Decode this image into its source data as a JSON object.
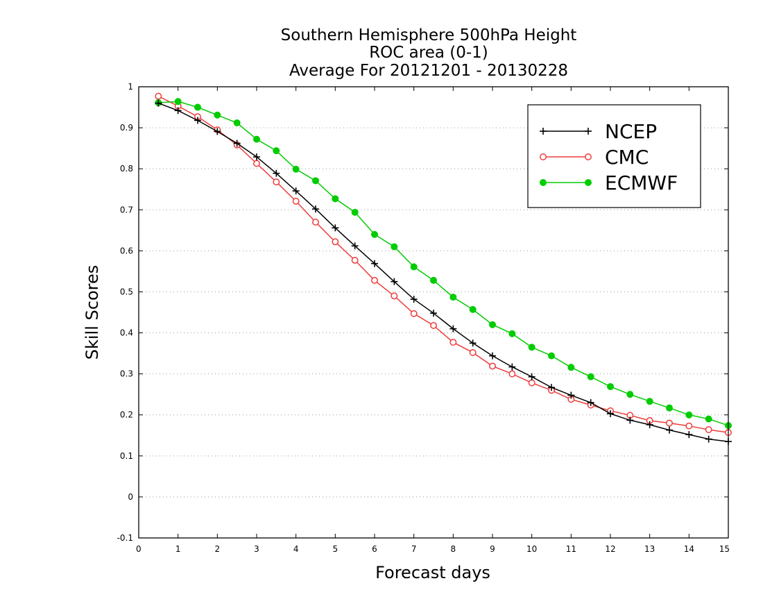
{
  "chart_data": {
    "type": "line",
    "title": [
      "Southern Hemisphere 500hPa Height",
      "ROC area (0-1)",
      "Average For 20121201 - 20130228"
    ],
    "xlabel": "Forecast days",
    "ylabel": "Skill Scores",
    "xlim": [
      0,
      15
    ],
    "ylim": [
      -0.1,
      1
    ],
    "xticks": [
      0,
      1,
      2,
      3,
      4,
      5,
      6,
      7,
      8,
      9,
      10,
      11,
      12,
      13,
      14,
      15
    ],
    "xtick_labels": [
      "0",
      "1",
      "2",
      "3",
      "4",
      "5",
      "6",
      "7",
      "8",
      "9",
      "10",
      "11",
      "12",
      "13",
      "14",
      "15"
    ],
    "yticks": [
      -0.1,
      0,
      0.1,
      0.2,
      0.3,
      0.4,
      0.5,
      0.6,
      0.7,
      0.8,
      0.9,
      1
    ],
    "ytick_labels": [
      "-0.1",
      "0",
      "0.1",
      "0.2",
      "0.3",
      "0.4",
      "0.5",
      "0.6",
      "0.7",
      "0.8",
      "0.9",
      "1"
    ],
    "grid": "horizontal dotted",
    "legend_position": "top-right",
    "x": [
      0.5,
      1,
      1.5,
      2,
      2.5,
      3,
      3.5,
      4,
      4.5,
      5,
      5.5,
      6,
      6.5,
      7,
      7.5,
      8,
      8.5,
      9,
      9.5,
      10,
      10.5,
      11,
      11.5,
      12,
      12.5,
      13,
      13.5,
      14,
      14.5,
      15
    ],
    "series": [
      {
        "name": "NCEP",
        "color": "#000000",
        "marker": "plus",
        "values": [
          0.96,
          0.942,
          0.918,
          0.891,
          0.862,
          0.829,
          0.789,
          0.746,
          0.702,
          0.656,
          0.612,
          0.569,
          0.525,
          0.482,
          0.448,
          0.41,
          0.375,
          0.344,
          0.317,
          0.293,
          0.267,
          0.248,
          0.23,
          0.203,
          0.187,
          0.176,
          0.163,
          0.152,
          0.141,
          0.135
        ]
      },
      {
        "name": "CMC",
        "color": "#ee3b3b",
        "marker": "open-circle",
        "values": [
          0.977,
          0.953,
          0.927,
          0.895,
          0.858,
          0.813,
          0.768,
          0.721,
          0.67,
          0.622,
          0.577,
          0.528,
          0.49,
          0.447,
          0.418,
          0.377,
          0.352,
          0.319,
          0.3,
          0.278,
          0.26,
          0.238,
          0.224,
          0.21,
          0.199,
          0.186,
          0.18,
          0.173,
          0.164,
          0.157
        ]
      },
      {
        "name": "ECMWF",
        "color": "#00cc00",
        "marker": "filled-circle",
        "values": [
          0.961,
          0.964,
          0.95,
          0.931,
          0.912,
          0.872,
          0.844,
          0.799,
          0.771,
          0.727,
          0.694,
          0.64,
          0.61,
          0.561,
          0.528,
          0.487,
          0.457,
          0.42,
          0.398,
          0.365,
          0.344,
          0.316,
          0.293,
          0.269,
          0.25,
          0.233,
          0.217,
          0.2,
          0.19,
          0.174
        ]
      }
    ]
  }
}
